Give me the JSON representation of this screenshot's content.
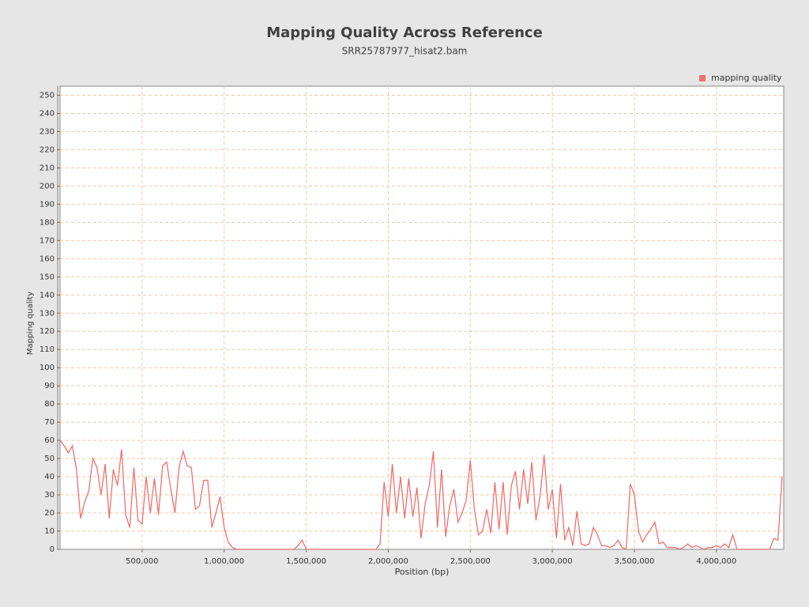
{
  "chart_data": {
    "type": "line",
    "title": "Mapping Quality Across Reference",
    "subtitle": "SRR25787977_hisat2.bam",
    "x_label": "Position (bp)",
    "y_label": "Mapping quality",
    "legend_position": "top-right",
    "grid": true,
    "xlim": [
      0,
      4410000
    ],
    "ylim": [
      0,
      255
    ],
    "xticks": [
      {
        "value": 500000,
        "label": "500,000"
      },
      {
        "value": 1000000,
        "label": "1,000,000"
      },
      {
        "value": 1500000,
        "label": "1,500,000"
      },
      {
        "value": 2000000,
        "label": "2,000,000"
      },
      {
        "value": 2500000,
        "label": "2,500,000"
      },
      {
        "value": 3000000,
        "label": "3,000,000"
      },
      {
        "value": 3500000,
        "label": "3,500,000"
      },
      {
        "value": 4000000,
        "label": "4,000,000"
      }
    ],
    "yticks": [
      0,
      10,
      20,
      30,
      40,
      50,
      60,
      70,
      80,
      90,
      100,
      110,
      120,
      130,
      140,
      150,
      160,
      170,
      180,
      190,
      200,
      210,
      220,
      230,
      240,
      250
    ],
    "x": [
      0,
      25000,
      50000,
      75000,
      100000,
      125000,
      150000,
      175000,
      200000,
      225000,
      250000,
      275000,
      300000,
      325000,
      350000,
      375000,
      400000,
      425000,
      450000,
      475000,
      500000,
      525000,
      550000,
      575000,
      600000,
      625000,
      650000,
      675000,
      700000,
      725000,
      750000,
      775000,
      800000,
      825000,
      850000,
      875000,
      900000,
      925000,
      950000,
      975000,
      1000000,
      1025000,
      1050000,
      1075000,
      1100000,
      1125000,
      1150000,
      1175000,
      1200000,
      1225000,
      1250000,
      1275000,
      1300000,
      1325000,
      1350000,
      1375000,
      1400000,
      1425000,
      1450000,
      1475000,
      1500000,
      1525000,
      1550000,
      1575000,
      1600000,
      1625000,
      1650000,
      1675000,
      1700000,
      1725000,
      1750000,
      1775000,
      1800000,
      1825000,
      1850000,
      1875000,
      1900000,
      1925000,
      1950000,
      1975000,
      2000000,
      2025000,
      2050000,
      2075000,
      2100000,
      2125000,
      2150000,
      2175000,
      2200000,
      2225000,
      2250000,
      2275000,
      2300000,
      2325000,
      2350000,
      2375000,
      2400000,
      2425000,
      2450000,
      2475000,
      2500000,
      2525000,
      2550000,
      2575000,
      2600000,
      2625000,
      2650000,
      2675000,
      2700000,
      2725000,
      2750000,
      2775000,
      2800000,
      2825000,
      2850000,
      2875000,
      2900000,
      2925000,
      2950000,
      2975000,
      3000000,
      3025000,
      3050000,
      3075000,
      3100000,
      3125000,
      3150000,
      3175000,
      3200000,
      3225000,
      3250000,
      3275000,
      3300000,
      3325000,
      3350000,
      3375000,
      3400000,
      3425000,
      3450000,
      3475000,
      3500000,
      3525000,
      3550000,
      3575000,
      3600000,
      3625000,
      3650000,
      3675000,
      3700000,
      3725000,
      3750000,
      3775000,
      3800000,
      3825000,
      3850000,
      3875000,
      3900000,
      3925000,
      3950000,
      3975000,
      4000000,
      4025000,
      4050000,
      4075000,
      4100000,
      4125000,
      4150000,
      4175000,
      4200000,
      4225000,
      4250000,
      4275000,
      4300000,
      4325000,
      4350000,
      4375000,
      4400000
    ],
    "series": [
      {
        "name": "mapping quality",
        "color": "#f0706f",
        "values": [
          60,
          57,
          53,
          57,
          44,
          17,
          26,
          32,
          50,
          45,
          30,
          47,
          17,
          44,
          35,
          55,
          19,
          12,
          45,
          16,
          14,
          40,
          20,
          39,
          19,
          46,
          48,
          33,
          20,
          45,
          54,
          46,
          45,
          22,
          24,
          38,
          38,
          12,
          20,
          29,
          12,
          4,
          1,
          0,
          0,
          0,
          0,
          0,
          0,
          0,
          0,
          0,
          0,
          0,
          0,
          0,
          0,
          0,
          2,
          5,
          0,
          0,
          0,
          0,
          0,
          0,
          0,
          0,
          0,
          0,
          0,
          0,
          0,
          0,
          0,
          0,
          0,
          0,
          3,
          37,
          18,
          47,
          20,
          40,
          17,
          39,
          18,
          34,
          6,
          25,
          35,
          54,
          12,
          44,
          7,
          24,
          33,
          15,
          20,
          27,
          49,
          22,
          8,
          10,
          22,
          9,
          37,
          11,
          37,
          8,
          35,
          43,
          22,
          44,
          25,
          48,
          16,
          29,
          52,
          22,
          33,
          6,
          36,
          5,
          12,
          2,
          21,
          3,
          2,
          3,
          12,
          8,
          2,
          2,
          1,
          2,
          5,
          1,
          0,
          36,
          30,
          10,
          4,
          8,
          11,
          15,
          3,
          4,
          1,
          1,
          1,
          0,
          1,
          3,
          1,
          2,
          1,
          0,
          1,
          1,
          2,
          1,
          3,
          1,
          8,
          0,
          0,
          0,
          0,
          0,
          0,
          0,
          0,
          0,
          6,
          5,
          40
        ]
      }
    ]
  }
}
